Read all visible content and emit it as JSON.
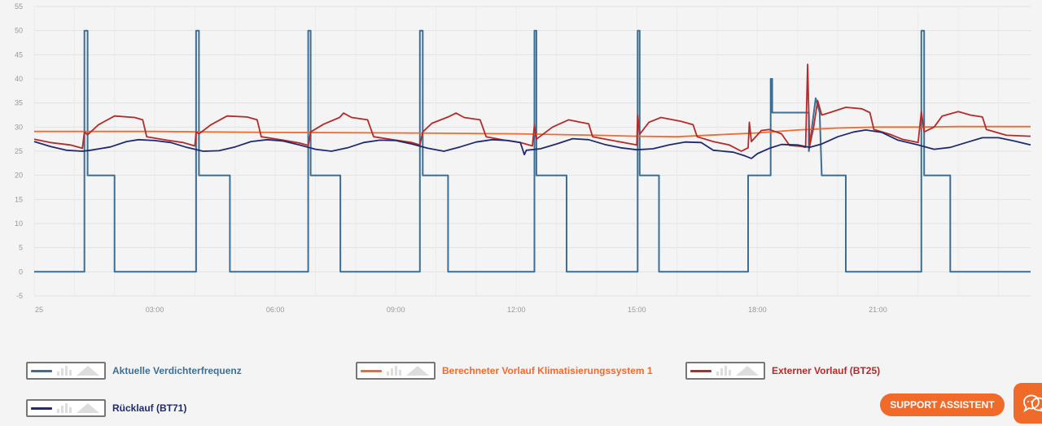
{
  "chart_data": {
    "type": "line",
    "ylim": [
      -5,
      55
    ],
    "yticks": [
      -5,
      0,
      5,
      10,
      15,
      20,
      25,
      30,
      35,
      40,
      45,
      50,
      55
    ],
    "xlim": [
      0,
      24.8
    ],
    "xtick_values": [
      0,
      3,
      6,
      9,
      12,
      15,
      18,
      21
    ],
    "xtick_labels": [
      "25",
      "03:00",
      "06:00",
      "09:00",
      "12:00",
      "15:00",
      "18:00",
      "21:00"
    ],
    "grid": true,
    "series": [
      {
        "name": "Aktuelle Verdichterfrequenz",
        "color": "#3d6f96",
        "step": true,
        "points": [
          [
            0,
            0
          ],
          [
            1.25,
            0
          ],
          [
            1.25,
            50
          ],
          [
            1.33,
            50
          ],
          [
            1.33,
            20
          ],
          [
            2.0,
            20
          ],
          [
            2.0,
            0
          ],
          [
            4.03,
            0
          ],
          [
            4.03,
            50
          ],
          [
            4.1,
            50
          ],
          [
            4.1,
            20
          ],
          [
            4.87,
            20
          ],
          [
            4.87,
            0
          ],
          [
            6.82,
            0
          ],
          [
            6.82,
            50
          ],
          [
            6.88,
            50
          ],
          [
            6.88,
            20
          ],
          [
            7.62,
            20
          ],
          [
            7.62,
            0
          ],
          [
            9.6,
            0
          ],
          [
            9.6,
            50
          ],
          [
            9.67,
            50
          ],
          [
            9.67,
            20
          ],
          [
            10.3,
            20
          ],
          [
            10.3,
            0
          ],
          [
            12.45,
            0
          ],
          [
            12.45,
            50
          ],
          [
            12.5,
            50
          ],
          [
            12.5,
            20
          ],
          [
            13.25,
            20
          ],
          [
            13.25,
            0
          ],
          [
            15.02,
            0
          ],
          [
            15.02,
            50
          ],
          [
            15.07,
            50
          ],
          [
            15.07,
            20
          ],
          [
            15.55,
            20
          ],
          [
            15.55,
            0
          ],
          [
            17.77,
            0
          ],
          [
            17.77,
            20
          ],
          [
            18.33,
            20
          ],
          [
            18.33,
            40
          ],
          [
            18.37,
            40
          ],
          [
            18.37,
            33
          ],
          [
            19.28,
            33
          ],
          [
            19.28,
            25
          ],
          [
            19.45,
            36
          ],
          [
            19.55,
            33
          ],
          [
            19.6,
            20
          ],
          [
            20.2,
            20
          ],
          [
            20.2,
            0
          ],
          [
            22.08,
            0
          ],
          [
            22.08,
            50
          ],
          [
            22.15,
            50
          ],
          [
            22.15,
            20
          ],
          [
            22.8,
            20
          ],
          [
            22.8,
            0
          ],
          [
            24.8,
            0
          ]
        ]
      },
      {
        "name": "Berechneter Vorlauf Klimatisierungssystem 1",
        "color": "#f26a2e",
        "step": false,
        "points": [
          [
            0,
            29.1
          ],
          [
            3,
            29.1
          ],
          [
            6,
            28.9
          ],
          [
            9,
            28.8
          ],
          [
            12,
            28.6
          ],
          [
            14,
            28.3
          ],
          [
            15,
            28.1
          ],
          [
            16,
            28.0
          ],
          [
            17,
            28.4
          ],
          [
            18,
            28.8
          ],
          [
            19,
            29.4
          ],
          [
            20,
            29.8
          ],
          [
            21,
            30.0
          ],
          [
            22,
            30.0
          ],
          [
            23,
            30.1
          ],
          [
            24.8,
            30.1
          ]
        ]
      },
      {
        "name": "Externer Vorlauf (BT25)",
        "color": "#b52a2a",
        "step": false,
        "points": [
          [
            0,
            27.5
          ],
          [
            0.4,
            26.8
          ],
          [
            0.9,
            26.3
          ],
          [
            1.2,
            25.6
          ],
          [
            1.25,
            29
          ],
          [
            1.33,
            28.4
          ],
          [
            1.6,
            30.5
          ],
          [
            2.0,
            32.3
          ],
          [
            2.5,
            32.0
          ],
          [
            2.7,
            31.5
          ],
          [
            2.8,
            28
          ],
          [
            3.3,
            27.3
          ],
          [
            3.7,
            26.8
          ],
          [
            4.0,
            26.1
          ],
          [
            4.03,
            29
          ],
          [
            4.1,
            28.6
          ],
          [
            4.4,
            30.5
          ],
          [
            4.8,
            32.3
          ],
          [
            5.3,
            32.1
          ],
          [
            5.55,
            31.5
          ],
          [
            5.65,
            28
          ],
          [
            6.2,
            27.3
          ],
          [
            6.6,
            26.7
          ],
          [
            6.82,
            26.2
          ],
          [
            6.88,
            29
          ],
          [
            7.2,
            30.6
          ],
          [
            7.6,
            32.0
          ],
          [
            7.7,
            32.9
          ],
          [
            7.9,
            32.0
          ],
          [
            8.3,
            31.5
          ],
          [
            8.45,
            28
          ],
          [
            9.0,
            27.3
          ],
          [
            9.4,
            26.8
          ],
          [
            9.6,
            26.3
          ],
          [
            9.67,
            29
          ],
          [
            9.9,
            30.8
          ],
          [
            10.3,
            32.1
          ],
          [
            10.5,
            32.9
          ],
          [
            10.7,
            32.0
          ],
          [
            11.1,
            31.5
          ],
          [
            11.25,
            28
          ],
          [
            11.7,
            27.3
          ],
          [
            12.1,
            26.8
          ],
          [
            12.4,
            26.1
          ],
          [
            12.45,
            30.5
          ],
          [
            12.5,
            27.5
          ],
          [
            12.9,
            30
          ],
          [
            13.3,
            31.5
          ],
          [
            13.6,
            31.0
          ],
          [
            13.8,
            30.7
          ],
          [
            13.9,
            28
          ],
          [
            14.4,
            27.2
          ],
          [
            14.8,
            26.6
          ],
          [
            15.0,
            26.3
          ],
          [
            15.02,
            32.5
          ],
          [
            15.07,
            28.5
          ],
          [
            15.3,
            31
          ],
          [
            15.6,
            32.0
          ],
          [
            16.1,
            31.2
          ],
          [
            16.4,
            30.5
          ],
          [
            16.5,
            28
          ],
          [
            16.9,
            27.0
          ],
          [
            17.3,
            26.3
          ],
          [
            17.6,
            25.0
          ],
          [
            17.77,
            25.7
          ],
          [
            17.8,
            31
          ],
          [
            17.85,
            27
          ],
          [
            18.1,
            29.3
          ],
          [
            18.3,
            29.5
          ],
          [
            18.6,
            28.6
          ],
          [
            18.8,
            26.2
          ],
          [
            19.1,
            26.0
          ],
          [
            19.2,
            25.8
          ],
          [
            19.25,
            43
          ],
          [
            19.3,
            26
          ],
          [
            19.4,
            30
          ],
          [
            19.5,
            35.5
          ],
          [
            19.6,
            32.5
          ],
          [
            19.8,
            33
          ],
          [
            20.2,
            34.1
          ],
          [
            20.6,
            33.8
          ],
          [
            20.8,
            33
          ],
          [
            20.9,
            29.5
          ],
          [
            21.3,
            28.5
          ],
          [
            21.6,
            27.5
          ],
          [
            22.0,
            26.8
          ],
          [
            22.08,
            33.2
          ],
          [
            22.15,
            29
          ],
          [
            22.4,
            30
          ],
          [
            22.6,
            32.3
          ],
          [
            23.0,
            33.2
          ],
          [
            23.3,
            32.5
          ],
          [
            23.6,
            32.1
          ],
          [
            23.7,
            29.5
          ],
          [
            24.2,
            28.3
          ],
          [
            24.8,
            28.1
          ]
        ]
      },
      {
        "name": "Rücklauf (BT71)",
        "color": "#1f2b6e",
        "step": false,
        "points": [
          [
            0,
            27
          ],
          [
            0.4,
            26
          ],
          [
            0.8,
            25.2
          ],
          [
            1.2,
            25.0
          ],
          [
            1.4,
            25.2
          ],
          [
            1.9,
            25.9
          ],
          [
            2.3,
            27.0
          ],
          [
            2.6,
            27.4
          ],
          [
            3.0,
            27.2
          ],
          [
            3.4,
            26.8
          ],
          [
            3.8,
            25.8
          ],
          [
            4.2,
            25.0
          ],
          [
            4.6,
            25.1
          ],
          [
            5.0,
            25.9
          ],
          [
            5.4,
            27.0
          ],
          [
            5.8,
            27.4
          ],
          [
            6.2,
            27.1
          ],
          [
            6.6,
            26.3
          ],
          [
            7.0,
            25.4
          ],
          [
            7.4,
            25.0
          ],
          [
            7.8,
            25.7
          ],
          [
            8.2,
            26.8
          ],
          [
            8.6,
            27.3
          ],
          [
            9.0,
            27.2
          ],
          [
            9.4,
            26.5
          ],
          [
            9.8,
            25.6
          ],
          [
            10.2,
            25.0
          ],
          [
            10.6,
            25.9
          ],
          [
            11.0,
            26.9
          ],
          [
            11.4,
            27.4
          ],
          [
            11.8,
            27.2
          ],
          [
            12.1,
            26.8
          ],
          [
            12.2,
            24.3
          ],
          [
            12.25,
            25.2
          ],
          [
            12.6,
            25.5
          ],
          [
            13.0,
            26.5
          ],
          [
            13.4,
            27.6
          ],
          [
            13.8,
            27.4
          ],
          [
            14.2,
            26.4
          ],
          [
            14.6,
            25.7
          ],
          [
            15.0,
            25.3
          ],
          [
            15.4,
            25.5
          ],
          [
            15.8,
            26.3
          ],
          [
            16.2,
            26.9
          ],
          [
            16.6,
            26.8
          ],
          [
            16.9,
            25.2
          ],
          [
            17.4,
            24.8
          ],
          [
            17.7,
            24.0
          ],
          [
            17.85,
            23.5
          ],
          [
            18.0,
            24.5
          ],
          [
            18.3,
            25.6
          ],
          [
            18.6,
            26.4
          ],
          [
            19.0,
            26.3
          ],
          [
            19.3,
            25.8
          ],
          [
            19.6,
            26.5
          ],
          [
            20.0,
            28.0
          ],
          [
            20.4,
            29.0
          ],
          [
            20.7,
            29.4
          ],
          [
            21.1,
            28.9
          ],
          [
            21.5,
            27.3
          ],
          [
            22.0,
            26.3
          ],
          [
            22.4,
            25.4
          ],
          [
            22.8,
            25.8
          ],
          [
            23.2,
            26.8
          ],
          [
            23.6,
            27.8
          ],
          [
            24.0,
            27.8
          ],
          [
            24.4,
            27.1
          ],
          [
            24.8,
            26.3
          ]
        ]
      }
    ]
  },
  "legend": [
    {
      "label": "Aktuelle Verdichterfrequenz",
      "color": "#3d6f96"
    },
    {
      "label": "Berechneter Vorlauf Klimatisierungssystem 1",
      "color": "#f26a2e"
    },
    {
      "label": "Externer Vorlauf (BT25)",
      "color": "#b52a2a"
    },
    {
      "label": "Rücklauf (BT71)",
      "color": "#1f2b6e"
    }
  ],
  "support_button": {
    "label": "SUPPORT ASSISTENT"
  },
  "chat_button": {
    "icon": "chat-bubbles-icon"
  }
}
